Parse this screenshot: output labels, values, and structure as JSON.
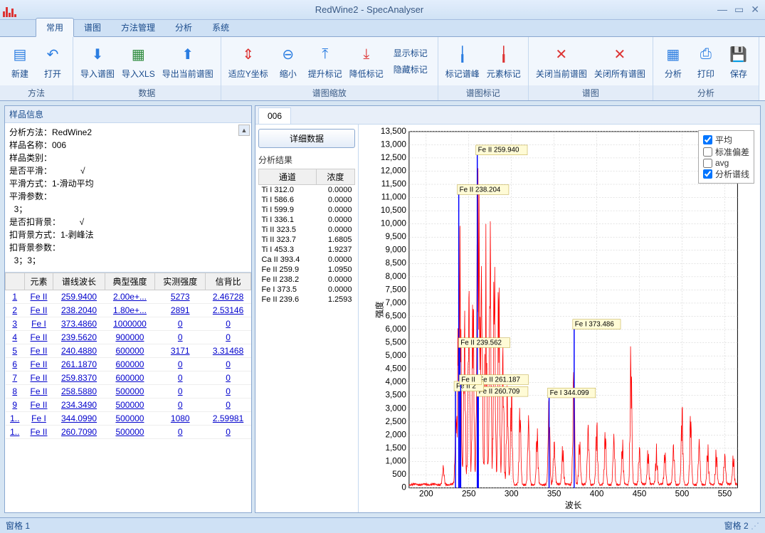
{
  "window": {
    "title": "RedWine2 - SpecAnalyser"
  },
  "tabs": {
    "t1": "常用",
    "t2": "谱图",
    "t3": "方法管理",
    "t4": "分析",
    "t5": "系统"
  },
  "ribbon": {
    "g1": {
      "label": "方法",
      "b1": "新建",
      "b2": "打开"
    },
    "g2": {
      "label": "数据",
      "b1": "导入谱图",
      "b2": "导入XLS",
      "b3": "导出当前谱图"
    },
    "g3": {
      "label": "谱图缩放",
      "b1": "适应Y坐标",
      "b2": "缩小",
      "b3": "提升标记",
      "b4": "降低标记",
      "s1": "显示标记",
      "s2": "隐藏标记"
    },
    "g4": {
      "label": "谱图标记",
      "b1": "标记谱峰",
      "b2": "元素标记"
    },
    "g5": {
      "label": "谱图",
      "b1": "关闭当前谱图",
      "b2": "关闭所有谱图"
    },
    "g6": {
      "label": "分析",
      "b1": "分析",
      "b2": "打印",
      "b3": "保存"
    }
  },
  "sampleInfo": {
    "title": "样品信息",
    "lines": {
      "l1": "分析方法：RedWine2",
      "l2": "样品名称：006",
      "l3": "样品类别：",
      "l4": "",
      "l5": "是否平滑：            √",
      "l6": "平滑方式：1-滑动平均",
      "l7": "平滑参数：",
      "l8": "  3；",
      "l9": "",
      "l10": "是否扣背景：        √",
      "l11": "扣背景方式：1-剥峰法",
      "l12": "扣背景参数：",
      "l13": "  3；3；"
    }
  },
  "elemTable": {
    "headers": {
      "h0": "",
      "h1": "元素",
      "h2": "谱线波长",
      "h3": "典型强度",
      "h4": "实测强度",
      "h5": "信背比"
    },
    "rows": [
      {
        "n": "1",
        "el": "Fe II",
        "wl": "259.9400",
        "ti": "2.00e+...",
        "mi": "5273",
        "sbr": "2.46728"
      },
      {
        "n": "2",
        "el": "Fe II",
        "wl": "238.2040",
        "ti": "1.80e+...",
        "mi": "2891",
        "sbr": "2.53146"
      },
      {
        "n": "3",
        "el": "Fe I",
        "wl": "373.4860",
        "ti": "1000000",
        "mi": "0",
        "sbr": "0"
      },
      {
        "n": "4",
        "el": "Fe II",
        "wl": "239.5620",
        "ti": "900000",
        "mi": "0",
        "sbr": "0"
      },
      {
        "n": "5",
        "el": "Fe II",
        "wl": "240.4880",
        "ti": "600000",
        "mi": "3171",
        "sbr": "3.31468"
      },
      {
        "n": "6",
        "el": "Fe II",
        "wl": "261.1870",
        "ti": "600000",
        "mi": "0",
        "sbr": "0"
      },
      {
        "n": "7",
        "el": "Fe II",
        "wl": "259.8370",
        "ti": "600000",
        "mi": "0",
        "sbr": "0"
      },
      {
        "n": "8",
        "el": "Fe II",
        "wl": "258.5880",
        "ti": "500000",
        "mi": "0",
        "sbr": "0"
      },
      {
        "n": "9",
        "el": "Fe II",
        "wl": "234.3490",
        "ti": "500000",
        "mi": "0",
        "sbr": "0"
      },
      {
        "n": "1..",
        "el": "Fe I",
        "wl": "344.0990",
        "ti": "500000",
        "mi": "1080",
        "sbr": "2.59981"
      },
      {
        "n": "1..",
        "el": "Fe II",
        "wl": "260.7090",
        "ti": "500000",
        "mi": "0",
        "sbr": "0"
      }
    ]
  },
  "specTab": "006",
  "detailBtn": "详细数据",
  "resultTitle": "分析结果",
  "resultHeaders": {
    "h1": "通道",
    "h2": "浓度"
  },
  "resultRows": [
    {
      "c": "Ti I 312.0",
      "v": "0.0000"
    },
    {
      "c": "Ti I 586.6",
      "v": "0.0000"
    },
    {
      "c": "Ti I 599.9",
      "v": "0.0000"
    },
    {
      "c": "Ti I 336.1",
      "v": "0.0000"
    },
    {
      "c": "Ti II 323.5",
      "v": "0.0000"
    },
    {
      "c": "Ti II 323.7",
      "v": "1.6805"
    },
    {
      "c": "Ti I 453.3",
      "v": "1.9237"
    },
    {
      "c": "Ca II 393.4",
      "v": "0.0000"
    },
    {
      "c": "Fe II 259.9",
      "v": "1.0950"
    },
    {
      "c": "Fe II 238.2",
      "v": "0.0000"
    },
    {
      "c": "Fe I 373.5",
      "v": "0.0000"
    },
    {
      "c": "Fe II 239.6",
      "v": "1.2593"
    }
  ],
  "legend": {
    "l1": "平均",
    "l2": "标准偏差",
    "l3": "avg",
    "l4": "分析谱线"
  },
  "chart": {
    "xlabel": "波长",
    "ylabel": "强度",
    "xlim": [
      180,
      565
    ],
    "ylim": [
      0,
      13500
    ],
    "xticks": [
      200,
      250,
      300,
      350,
      400,
      450,
      500,
      550
    ],
    "yticks": [
      0,
      500,
      1000,
      1500,
      2000,
      2500,
      3000,
      3500,
      4000,
      4500,
      5000,
      5500,
      6000,
      6500,
      7000,
      7500,
      8000,
      8500,
      9000,
      9500,
      10000,
      10500,
      11000,
      11500,
      12000,
      12500,
      13000,
      13500
    ],
    "bg": "#ffffff",
    "grid": "#c8c8c8",
    "series_color": "#ff0000",
    "marker_color": "#0000ff",
    "peak_marker": "#0000ff",
    "peaks": [
      {
        "x": 259.94,
        "label": "Fe II 259.940",
        "ly": 12800
      },
      {
        "x": 238.2,
        "label": "Fe II 238.204",
        "ly": 11300
      },
      {
        "x": 373.49,
        "label": "Fe I 373.486",
        "ly": 6200
      },
      {
        "x": 239.56,
        "label": "Fe II 239.562",
        "ly": 5500
      },
      {
        "x": 261.19,
        "label": "Fe II 261.187",
        "ly": 4100
      },
      {
        "x": 260.71,
        "label": "Fe II 260.709",
        "ly": 3650
      },
      {
        "x": 344.1,
        "label": "Fe I 344.099",
        "ly": 3600
      },
      {
        "x": 234.35,
        "label": "Fe II 2",
        "ly": 3850
      },
      {
        "x": 240.49,
        "label": "Fe II",
        "ly": 4100
      }
    ]
  },
  "status": {
    "left": "窗格 1",
    "right": "窗格 2"
  }
}
